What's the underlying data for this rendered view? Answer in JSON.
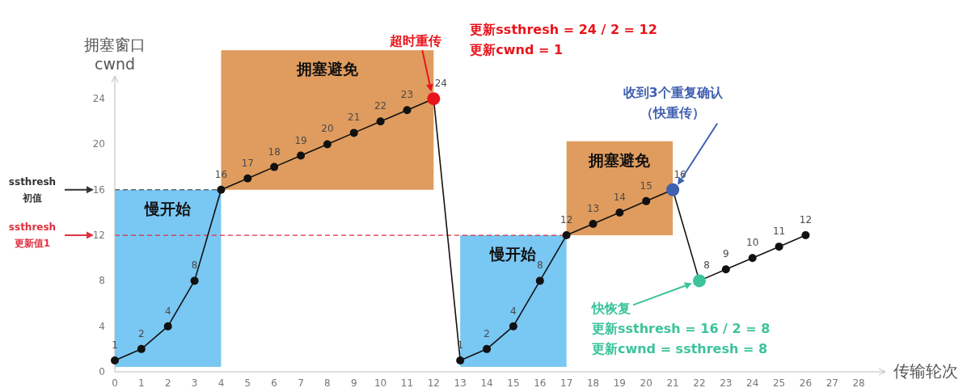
{
  "chart_data": {
    "type": "line",
    "xlabel": "传输轮次",
    "ylabel": "拥塞窗口\ncwnd",
    "xlim": [
      0,
      29
    ],
    "xticks": [
      0,
      1,
      2,
      3,
      4,
      5,
      6,
      7,
      8,
      9,
      10,
      11,
      12,
      13,
      14,
      15,
      16,
      17,
      18,
      19,
      20,
      21,
      22,
      23,
      24,
      25,
      26,
      27,
      28
    ],
    "ylim": [
      0,
      26
    ],
    "yticks": [
      0,
      4,
      8,
      12,
      16,
      20,
      24
    ],
    "marker": "circle",
    "line_style": "solid",
    "data_labels": true,
    "series": [
      {
        "color": "#111111",
        "x": [
          0,
          1,
          2,
          3,
          4,
          5,
          6,
          7,
          8,
          9,
          10,
          11,
          12,
          13,
          14,
          15,
          16,
          17,
          18,
          19,
          20,
          21,
          22,
          23,
          24,
          25,
          26
        ],
        "values": [
          1,
          2,
          4,
          8,
          16,
          17,
          18,
          19,
          20,
          21,
          22,
          23,
          24,
          1,
          2,
          4,
          8,
          12,
          13,
          14,
          15,
          16,
          8,
          9,
          10,
          11,
          12
        ],
        "colors": [
          "#111111",
          "#111111",
          "#111111",
          "#111111",
          "#111111",
          "#111111",
          "#111111",
          "#111111",
          "#111111",
          "#111111",
          "#111111",
          "#111111",
          "#e8141c",
          "#111111",
          "#111111",
          "#111111",
          "#111111",
          "#111111",
          "#111111",
          "#111111",
          "#111111",
          "#4060b0",
          "#3cc39a",
          "#111111",
          "#111111",
          "#111111",
          "#111111"
        ]
      }
    ],
    "bands": [
      {
        "axis": "x",
        "from": 0,
        "to": 4,
        "label": "慢开始",
        "color": "#79c7f3"
      },
      {
        "axis": "x",
        "from": 4,
        "to": 12,
        "label": "拥塞避免",
        "color": "#e09c5e"
      },
      {
        "axis": "x",
        "from": 13,
        "to": 17,
        "label": "慢开始",
        "color": "#79c7f3"
      },
      {
        "axis": "x",
        "from": 17,
        "to": 21,
        "label": "拥塞避免",
        "color": "#e09c5e"
      }
    ],
    "ref_lines": [
      {
        "axis": "y",
        "value": 16,
        "label": "ssthresh\n初值",
        "color": "#333333",
        "line_style": "dashed"
      },
      {
        "axis": "y",
        "value": 12,
        "label": "ssthresh\n更新值1",
        "color": "#e03040",
        "line_style": "dashed"
      }
    ],
    "annotations": [
      "超时重传",
      "更新ssthresh = 24 / 2 = 12",
      "更新cwnd = 1",
      "收到3个重复确认（快重传）",
      "快恢复",
      "更新ssthresh = 16 / 2 = 8",
      "更新cwnd = ssthresh = 8"
    ]
  }
}
